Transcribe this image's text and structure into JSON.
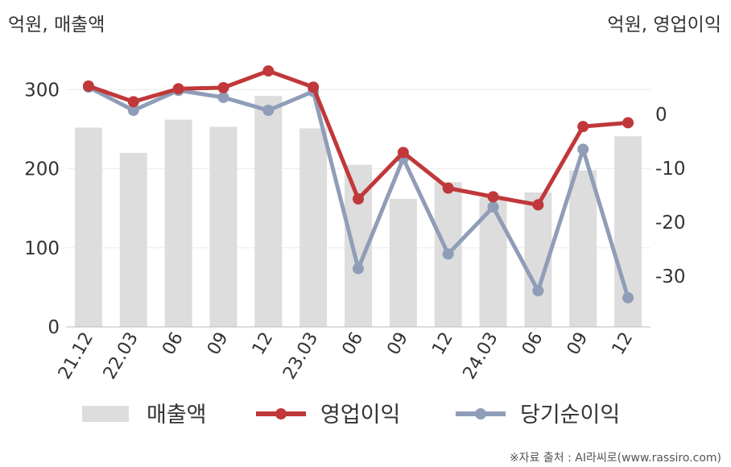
{
  "chart_data": {
    "type": "bar+line",
    "left_axis_label": "억원, 매출액",
    "right_axis_label": "억원, 영업이익",
    "categories": [
      "21.12",
      "22.03",
      "06",
      "09",
      "12",
      "23.03",
      "06",
      "09",
      "12",
      "24.03",
      "06",
      "09",
      "12"
    ],
    "left_axis": {
      "range": [
        0,
        340
      ],
      "ticks": [
        0,
        100,
        200,
        300
      ]
    },
    "right_axis": {
      "range": [
        -39.4,
        10.4
      ],
      "ticks": [
        0,
        -10,
        -20,
        -30
      ]
    },
    "series": [
      {
        "name": "매출액",
        "kind": "bar",
        "axis": "left",
        "color": "#dddddd",
        "values": [
          252,
          220,
          262,
          253,
          292,
          251,
          205,
          162,
          183,
          164,
          170,
          198,
          241
        ]
      },
      {
        "name": "영업이익",
        "kind": "line",
        "axis": "right",
        "color": "#c0383a",
        "values": [
          5.2,
          2.3,
          4.7,
          4.9,
          8.0,
          5.0,
          -15.7,
          -7.1,
          -13.7,
          -15.3,
          -16.8,
          -2.3,
          -1.6
        ]
      },
      {
        "name": "당기순이익",
        "kind": "line",
        "axis": "right",
        "color": "#8f9db8",
        "values": [
          5.0,
          0.7,
          4.4,
          3.1,
          0.7,
          4.2,
          -28.6,
          -8.2,
          -25.9,
          -17.2,
          -32.7,
          -6.5,
          -34.0
        ]
      }
    ],
    "legend_position": "bottom",
    "grid": true
  },
  "source_note": "※자료 출처 : AI라씨로(www.rassiro.com)"
}
